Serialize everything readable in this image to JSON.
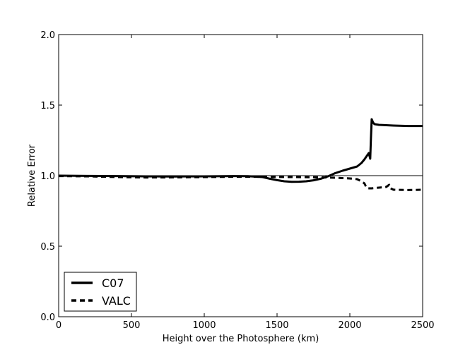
{
  "chart_data": {
    "type": "line",
    "title": "",
    "xlabel": "Height over the Photosphere (km)",
    "ylabel": "Relative Error",
    "xlim": [
      0,
      2500
    ],
    "ylim": [
      0.0,
      2.0
    ],
    "xticks": [
      0,
      500,
      1000,
      1500,
      2000,
      2500
    ],
    "xtick_labels": [
      "0",
      "500",
      "1000",
      "1500",
      "2000",
      "2500"
    ],
    "yticks": [
      0.0,
      0.5,
      1.0,
      1.5,
      2.0
    ],
    "ytick_labels": [
      "0.0",
      "0.5",
      "1.0",
      "1.5",
      "2.0"
    ],
    "grid": false,
    "reference_line": 1.0,
    "legend_position": "lower-left",
    "series": [
      {
        "name": "C07",
        "style": "solid",
        "color": "#000000",
        "x": [
          0,
          200,
          400,
          600,
          800,
          1000,
          1200,
          1300,
          1400,
          1450,
          1500,
          1550,
          1600,
          1650,
          1700,
          1750,
          1800,
          1850,
          1900,
          1950,
          2000,
          2050,
          2080,
          2100,
          2120,
          2130,
          2140,
          2145,
          2150,
          2160,
          2170,
          2200,
          2300,
          2400,
          2500
        ],
        "y": [
          1.0,
          0.998,
          0.997,
          0.995,
          0.994,
          0.995,
          0.997,
          0.996,
          0.99,
          0.978,
          0.968,
          0.96,
          0.956,
          0.957,
          0.96,
          0.967,
          0.978,
          0.995,
          1.018,
          1.035,
          1.05,
          1.065,
          1.09,
          1.115,
          1.145,
          1.16,
          1.12,
          1.27,
          1.4,
          1.375,
          1.365,
          1.36,
          1.355,
          1.352,
          1.352
        ]
      },
      {
        "name": "VALC",
        "style": "dashed",
        "color": "#000000",
        "x": [
          0,
          200,
          400,
          600,
          800,
          1000,
          1200,
          1400,
          1600,
          1800,
          1900,
          2000,
          2050,
          2080,
          2100,
          2110,
          2120,
          2150,
          2200,
          2250,
          2270,
          2280,
          2300,
          2400,
          2500
        ],
        "y": [
          0.997,
          0.995,
          0.99,
          0.987,
          0.988,
          0.99,
          0.992,
          0.992,
          0.99,
          0.988,
          0.985,
          0.98,
          0.975,
          0.96,
          0.945,
          0.925,
          0.91,
          0.91,
          0.915,
          0.92,
          0.935,
          0.91,
          0.9,
          0.898,
          0.9
        ]
      }
    ]
  }
}
